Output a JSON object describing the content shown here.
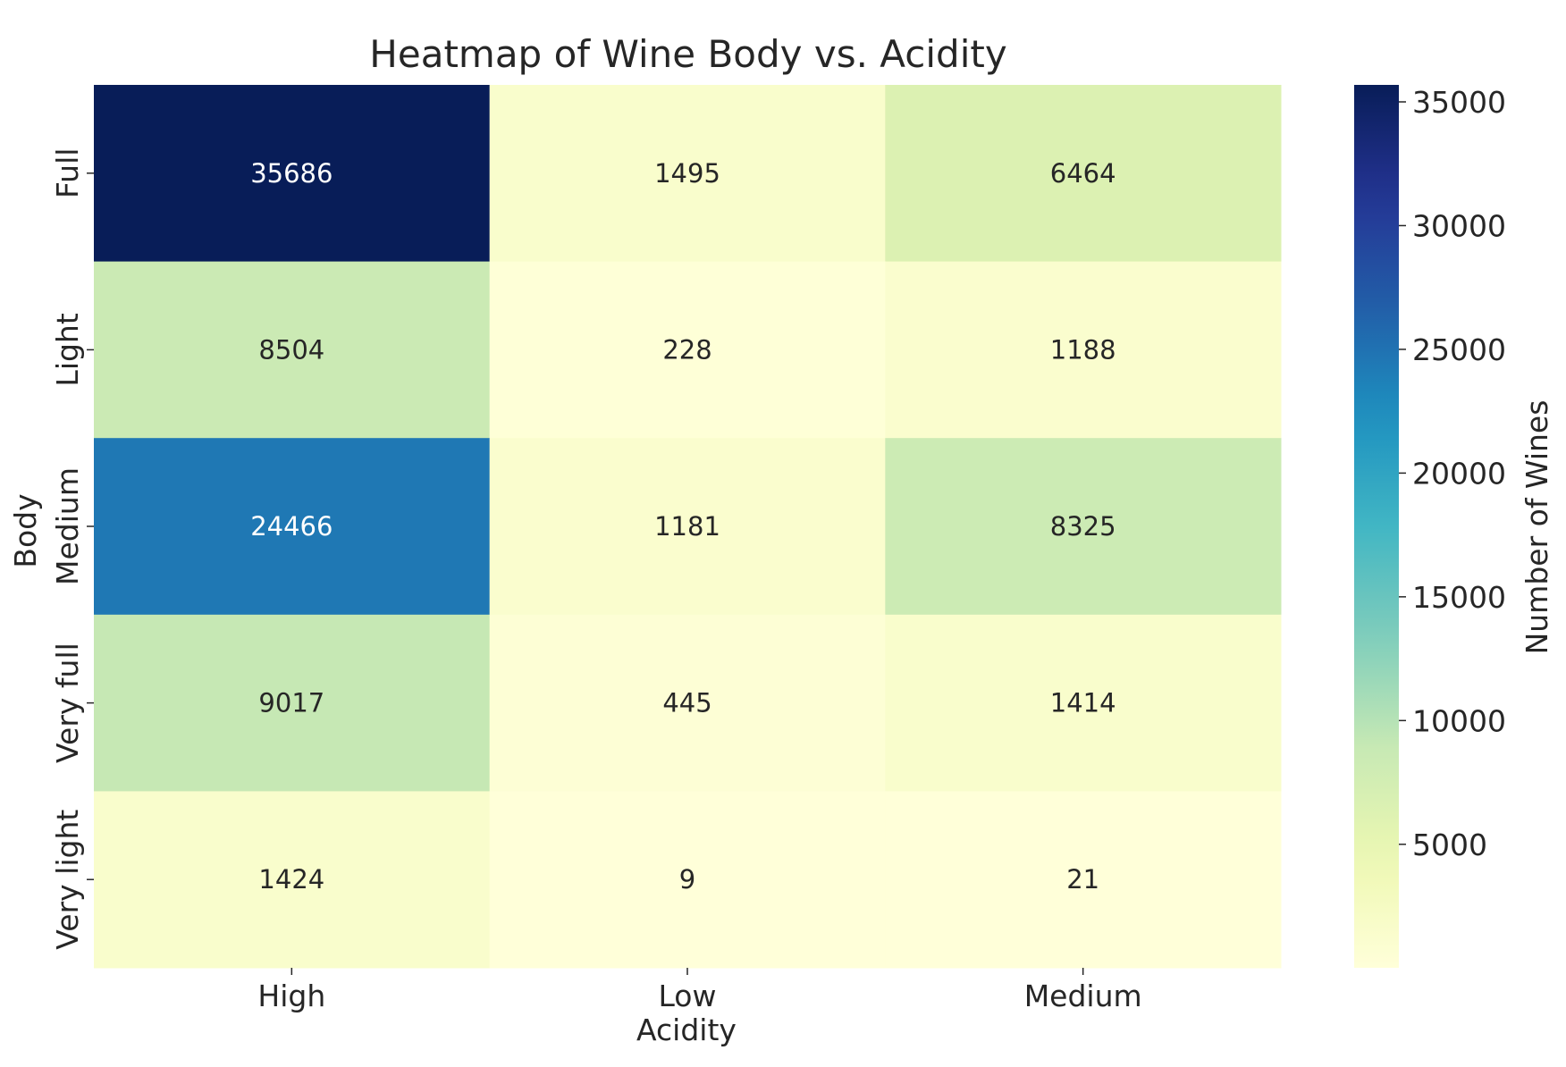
{
  "chart_data": {
    "type": "heatmap",
    "title": "Heatmap of Wine Body vs. Acidity",
    "xlabel": "Acidity",
    "ylabel": "Body",
    "x_categories": [
      "High",
      "Low",
      "Medium"
    ],
    "y_categories": [
      "Full",
      "Light",
      "Medium",
      "Very full",
      "Very light"
    ],
    "values": [
      [
        35686,
        1495,
        6464
      ],
      [
        8504,
        228,
        1188
      ],
      [
        24466,
        1181,
        8325
      ],
      [
        9017,
        445,
        1414
      ],
      [
        1424,
        9,
        21
      ]
    ],
    "colorbar": {
      "label": "Number of Wines",
      "ticks": [
        5000,
        10000,
        15000,
        20000,
        25000,
        30000,
        35000
      ],
      "range": [
        9,
        35686
      ],
      "colormap": "YlGnBu"
    },
    "grid": false
  }
}
